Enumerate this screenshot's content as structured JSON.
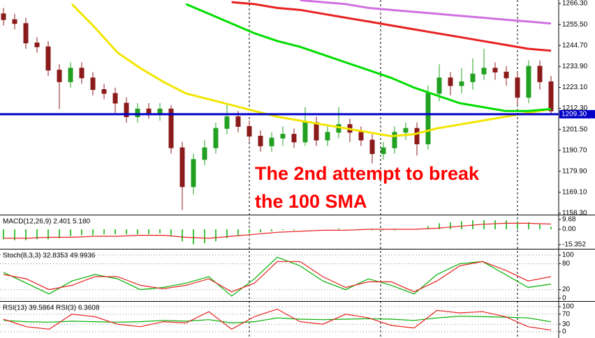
{
  "chart_data": [
    {
      "type": "candlestick",
      "open": [
        1261,
        1258,
        1256,
        1246,
        1244,
        1232,
        1226,
        1233,
        1228,
        1222,
        1220,
        1215,
        1208,
        1212,
        1210,
        1212,
        1192,
        1172,
        1186,
        1192,
        1202,
        1208,
        1203,
        1198,
        1193,
        1197,
        1199,
        1195,
        1205,
        1196,
        1200,
        1204,
        1200,
        1196,
        1189,
        1192,
        1200,
        1202,
        1194,
        1220,
        1228,
        1224,
        1226,
        1230,
        1233,
        1231,
        1228,
        1218,
        1234,
        1226
      ],
      "high": [
        1264,
        1261,
        1259,
        1249,
        1247,
        1235,
        1236,
        1236,
        1231,
        1225,
        1223,
        1218,
        1215,
        1215,
        1215,
        1214,
        1195,
        1189,
        1196,
        1205,
        1214,
        1211,
        1206,
        1201,
        1200,
        1203,
        1202,
        1213,
        1208,
        1203,
        1213,
        1207,
        1203,
        1199,
        1195,
        1203,
        1205,
        1205,
        1224,
        1235,
        1231,
        1233,
        1238,
        1243,
        1236,
        1234,
        1231,
        1237,
        1237,
        1229
      ],
      "low": [
        1255,
        1253,
        1243,
        1241,
        1229,
        1212,
        1223,
        1225,
        1219,
        1217,
        1210,
        1205,
        1205,
        1207,
        1206,
        1189,
        1160,
        1168,
        1183,
        1189,
        1199,
        1200,
        1195,
        1190,
        1190,
        1193,
        1192,
        1193,
        1193,
        1193,
        1197,
        1195,
        1193,
        1184,
        1186,
        1189,
        1196,
        1188,
        1191,
        1216,
        1219,
        1220,
        1222,
        1227,
        1227,
        1224,
        1214,
        1215,
        1222,
        1209
      ],
      "close": [
        1258,
        1256,
        1246,
        1244,
        1232,
        1226,
        1233,
        1228,
        1222,
        1220,
        1215,
        1208,
        1212,
        1210,
        1212,
        1192,
        1172,
        1186,
        1192,
        1202,
        1208,
        1203,
        1198,
        1193,
        1197,
        1199,
        1195,
        1205,
        1196,
        1200,
        1204,
        1200,
        1196,
        1189,
        1192,
        1200,
        1202,
        1194,
        1220,
        1228,
        1224,
        1226,
        1230,
        1233,
        1231,
        1228,
        1218,
        1234,
        1226,
        1211
      ],
      "up_color": "#22a022",
      "down_color": "#8b1a1a",
      "series": [
        {
          "color": "#f2e600",
          "values": [
            null,
            null,
            null,
            1266,
            1254,
            1241,
            1233,
            1226,
            1220,
            1217,
            1214,
            1211,
            1208,
            1206,
            1204,
            1202,
            1200,
            1198,
            1199,
            1202,
            1204,
            1206,
            1208,
            1210,
            1212
          ]
        },
        {
          "color": "#00dd00",
          "values": [
            null,
            null,
            null,
            null,
            null,
            null,
            null,
            null,
            1266,
            1261,
            1256,
            1251,
            1247,
            1244,
            1240,
            1236,
            1232,
            1228,
            1223,
            1219,
            1215,
            1213,
            1211,
            1211,
            1212
          ]
        },
        {
          "color": "#e82020",
          "values": [
            null,
            null,
            null,
            null,
            null,
            null,
            null,
            null,
            null,
            null,
            1267,
            1266,
            1264,
            1263,
            1261,
            1259,
            1257,
            1255,
            1253,
            1251,
            1249,
            1247,
            1245,
            1243,
            1242
          ]
        },
        {
          "color": "#d070e0",
          "values": [
            null,
            null,
            null,
            null,
            null,
            null,
            null,
            null,
            null,
            null,
            null,
            null,
            null,
            1268,
            1267,
            1266,
            1264,
            1263,
            1262,
            1261,
            1260,
            1259,
            1258,
            1257,
            1256
          ]
        }
      ],
      "hline": {
        "value": 1209.3,
        "label": "1209.30"
      },
      "hline_color": "#0000c8",
      "annotation_lines": [
        "The 2nd attempt to break",
        "the 100 SMA"
      ],
      "ylim": [
        1157.6,
        1268.1
      ],
      "yticks": [
        {
          "value": 1266.3,
          "label": "1266.30"
        },
        {
          "value": 1255.5,
          "label": "1255.50"
        },
        {
          "value": 1244.7,
          "label": "1244.70"
        },
        {
          "value": 1233.9,
          "label": "1233.90"
        },
        {
          "value": 1223.1,
          "label": "1223.10"
        },
        {
          "value": 1212.3,
          "label": "1212.30"
        },
        {
          "value": 1201.5,
          "label": "1201.50"
        },
        {
          "value": 1190.7,
          "label": "1190.70"
        },
        {
          "value": 1179.9,
          "label": "1179.90"
        },
        {
          "value": 1169.1,
          "label": "1169.10"
        },
        {
          "value": 1158.3,
          "label": "1158.30"
        }
      ],
      "grid": false
    },
    {
      "type": "macd",
      "title": "MACD(12,26,9) 2.401 5.180",
      "color": "#00b000",
      "values": [
        -10,
        -11,
        -11,
        -10,
        -10,
        -9,
        -7,
        -6,
        -6,
        -5,
        -5,
        -5,
        -5,
        -5,
        -4,
        -6,
        -12,
        -15,
        -14,
        -12,
        -9,
        -6,
        -4,
        -3,
        -2,
        -1,
        -1,
        0,
        0,
        0,
        1,
        0,
        0,
        -1,
        -1,
        -1,
        0,
        0,
        3,
        6,
        7,
        8,
        9,
        9,
        9,
        9,
        8,
        7,
        5,
        2.4
      ],
      "series": [
        {
          "color": "#e82020",
          "values": [
            -9,
            -9,
            -8,
            -8,
            -7,
            -7,
            -6,
            -6,
            -8,
            -9,
            -7,
            -5,
            -3,
            -2,
            -1,
            -1,
            0,
            0,
            0,
            1,
            3,
            5,
            6,
            6,
            5.2
          ]
        }
      ],
      "ylim": [
        -19.5,
        13.9
      ],
      "yticks": [
        9.68,
        {
          "value": 0,
          "label": "0.00"
        },
        -15.352
      ],
      "grid": false
    },
    {
      "type": "line",
      "title": "Stoch(8,3,3) 32.8353 49.9936",
      "series": [
        {
          "color": "#00b000",
          "values": [
            60,
            35,
            10,
            40,
            55,
            45,
            20,
            25,
            35,
            50,
            5,
            45,
            95,
            75,
            40,
            20,
            45,
            30,
            10,
            55,
            80,
            85,
            55,
            25,
            32.8
          ]
        },
        {
          "color": "#e82020",
          "values": [
            55,
            45,
            20,
            30,
            50,
            50,
            30,
            22,
            30,
            45,
            15,
            35,
            85,
            85,
            50,
            25,
            38,
            38,
            15,
            40,
            75,
            85,
            65,
            40,
            50
          ]
        }
      ],
      "ylim": [
        -6.5,
        112.9
      ],
      "yticks": [
        100,
        80,
        20,
        0
      ],
      "grid": true
    },
    {
      "type": "line",
      "title": "RSI(13) 39.5864 RSI(3) 6.3608",
      "series": [
        {
          "color": "#00b000",
          "values": [
            45,
            40,
            38,
            42,
            40,
            38,
            40,
            45,
            42,
            48,
            35,
            40,
            55,
            50,
            48,
            50,
            52,
            50,
            45,
            55,
            62,
            60,
            58,
            55,
            39.6
          ]
        },
        {
          "color": "#e82020",
          "values": [
            50,
            20,
            10,
            70,
            60,
            30,
            20,
            40,
            35,
            80,
            10,
            60,
            90,
            40,
            30,
            70,
            55,
            25,
            15,
            85,
            75,
            80,
            60,
            20,
            6.4
          ]
        }
      ],
      "ylim": [
        -25,
        119.4
      ],
      "yticks": [
        100,
        70,
        30,
        0
      ],
      "grid": true
    }
  ]
}
